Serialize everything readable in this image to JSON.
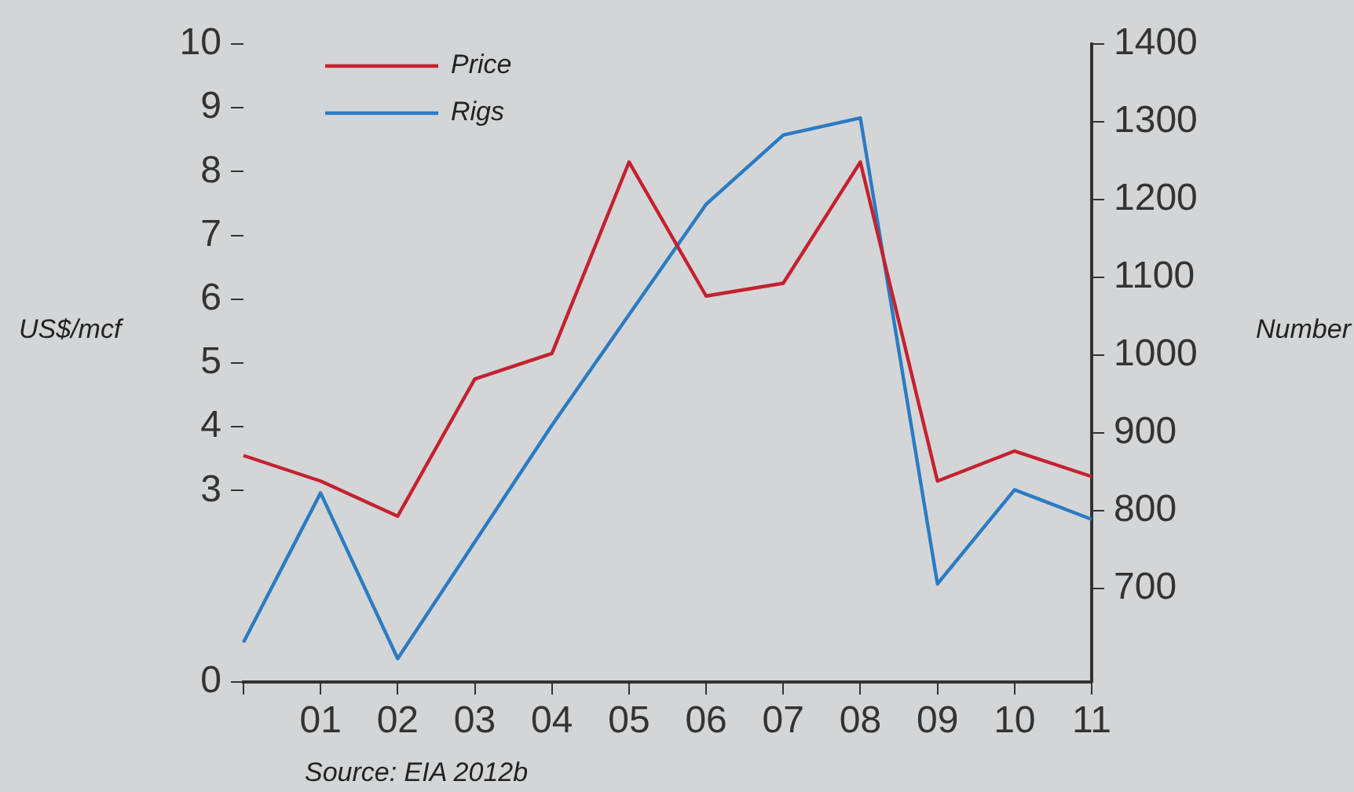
{
  "chart_data": {
    "type": "line",
    "categories": [
      null,
      "01",
      "02",
      "03",
      "04",
      "05",
      "06",
      "07",
      "08",
      "09",
      "10",
      "11"
    ],
    "series": [
      {
        "name": "Price",
        "color": "#c4212f",
        "values": [
          3.55,
          3.15,
          2.6,
          4.75,
          5.15,
          8.15,
          6.05,
          6.25,
          8.15,
          3.15,
          3.62,
          3.22
        ]
      },
      {
        "name": "Rigs",
        "color": "#2a7bc4",
        "axis": "y2",
        "values": [
          631,
          823,
          610,
          760,
          910,
          1052,
          1194,
          1283,
          1305,
          706,
          827,
          789
        ]
      }
    ],
    "ylabel": "US$/mcf",
    "y2label": "Number",
    "ylim": [
      0,
      10
    ],
    "yticks": [
      0,
      3,
      4,
      5,
      6,
      7,
      8,
      9,
      10
    ],
    "y2lim": [
      580,
      1400
    ],
    "y2ticks": [
      700,
      800,
      900,
      1000,
      1100,
      1200,
      1300,
      1400
    ],
    "annotations": [
      "Source: EIA 2012b"
    ],
    "legend": "top left",
    "grid": false,
    "marker": "none",
    "line_style": "solid"
  }
}
